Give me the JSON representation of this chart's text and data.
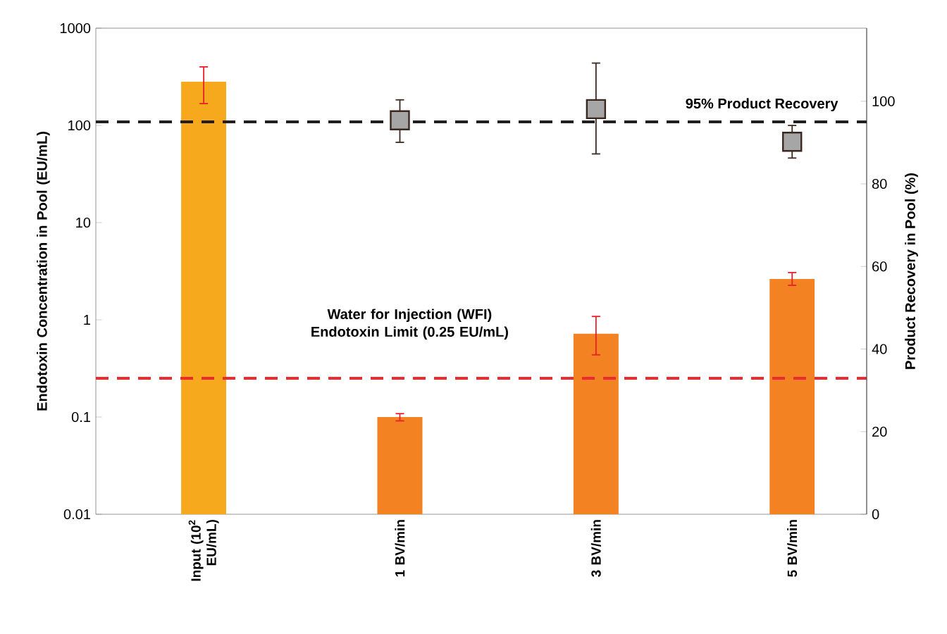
{
  "chart_data": {
    "type": "bar",
    "ylabel": "Endotoxin Concentration in Pool (EU/mL)",
    "y2label": "Product Recovery in Pool (%)",
    "categories": [
      "Input (10$^{2}$ EU/mL)",
      "1 BV/min",
      "3 BV/min",
      "5 BV/min"
    ],
    "log": "y",
    "ylim": [
      0.01,
      1000
    ],
    "yticks": [
      0.01,
      0.1,
      1,
      10,
      100,
      1000
    ],
    "y2lim": [
      0,
      117.7
    ],
    "y2ticks": [
      0,
      20,
      40,
      60,
      80,
      100
    ],
    "series": [
      {
        "colors": [
          "#f7a91d",
          "#f28222",
          "#f28222",
          "#f28222"
        ],
        "values": [
          281,
          0.1,
          0.72,
          2.63
        ],
        "errors": [
          [
            165,
            406
          ],
          [
            0.09,
            0.11
          ],
          [
            0.43,
            1.1
          ],
          [
            2.23,
            3.11
          ]
        ]
      },
      {
        "type": "scatter",
        "axis": "y2",
        "color": "#a6a6a6",
        "marker": "square",
        "values": [
          null,
          95.4,
          98.1,
          90.2
        ],
        "errors": [
          null,
          [
            89.9,
            100.5
          ],
          [
            87.1,
            109.4
          ],
          [
            86.1,
            94.3
          ]
        ]
      }
    ],
    "ref_lines": [
      {
        "axis": "y2",
        "value": 95,
        "label": "95% Product Recovery",
        "color": "#231f20",
        "line_style": "dashed"
      },
      {
        "axis": "y",
        "value": 0.25,
        "label": "Water for Injection (WFI) Endotoxin Limit (0.25 EU/mL)",
        "color": "#ee2a2e",
        "line_style": "dashed"
      }
    ]
  }
}
